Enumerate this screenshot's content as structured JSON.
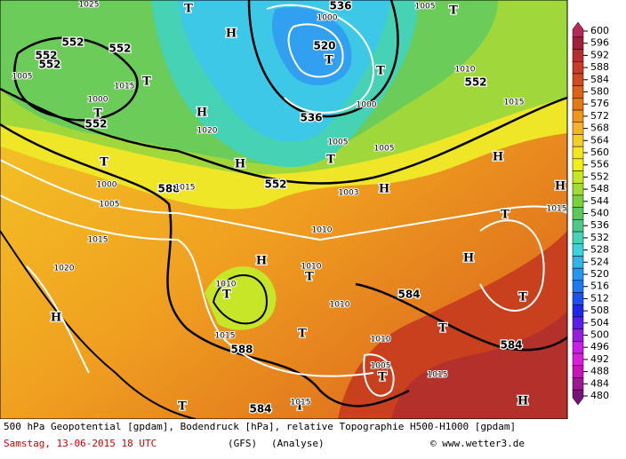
{
  "map": {
    "height_labels": [
      "552",
      "552",
      "552",
      "552",
      "552",
      "552",
      "552",
      "536",
      "536",
      "520",
      "588",
      "588",
      "584",
      "584",
      "584"
    ],
    "system_labels": [
      "H",
      "H",
      "H",
      "H",
      "H",
      "H",
      "H",
      "H",
      "H",
      "H",
      "T",
      "T",
      "T",
      "T",
      "T",
      "T",
      "T",
      "T",
      "T",
      "T",
      "T",
      "T",
      "T",
      "T",
      "T",
      "T",
      "T"
    ],
    "pressure_labels": [
      "1025",
      "1005",
      "1015",
      "1000",
      "1020",
      "1000",
      "1005",
      "1015",
      "1015",
      "1020",
      "1010",
      "1015",
      "1005",
      "1005",
      "1000",
      "1000",
      "1005",
      "1010",
      "1010",
      "1010",
      "1015",
      "1010",
      "1010",
      "1005",
      "1015",
      "1015",
      "1015",
      "1003"
    ]
  },
  "colorbar": {
    "levels": [
      600,
      596,
      592,
      588,
      584,
      580,
      576,
      572,
      568,
      564,
      560,
      556,
      552,
      548,
      544,
      540,
      536,
      532,
      528,
      524,
      520,
      516,
      512,
      508,
      504,
      500,
      496,
      492,
      488,
      484,
      480
    ],
    "colors": [
      "#b4285a",
      "#a0203a",
      "#b43030",
      "#c83c28",
      "#d04a20",
      "#dc6418",
      "#e67818",
      "#f0961e",
      "#f5b428",
      "#f5cd28",
      "#f5e61e",
      "#f0f014",
      "#c8e628",
      "#a0dc32",
      "#78d23c",
      "#5ac85a",
      "#50c88c",
      "#46d2b4",
      "#3cd2dc",
      "#32b4e6",
      "#2896f0",
      "#1e78f0",
      "#1e50f0",
      "#1e28e6",
      "#5a1ee6",
      "#961edc",
      "#c81ee6",
      "#dc1edc",
      "#c814b4",
      "#a01496",
      "#781478"
    ]
  },
  "footer": {
    "description": "500 hPa Geopotential [gpdam], Bodendruck [hPa], relative Topographie H500-H1000 [gpdam]",
    "date": "Samstag, 13-06-2015  18 UTC",
    "model": "(GFS)",
    "run": "(Analyse)",
    "source": "© www.wetter3.de"
  }
}
